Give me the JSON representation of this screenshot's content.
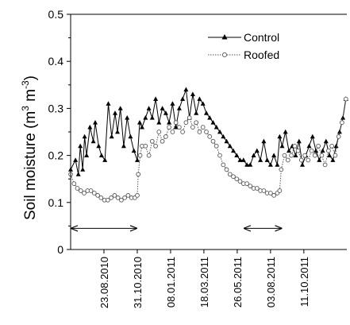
{
  "chart_data": {
    "type": "line",
    "ylabel": "Soil moisture (m³ m⁻³)",
    "ylabel_parts": {
      "base": "Soil moisture (m",
      "exp1": "3",
      "mid": " m",
      "exp2": "-3",
      "end": ")"
    },
    "ylim": [
      0,
      0.5
    ],
    "yticks": [
      "0",
      "0.1",
      "0.2",
      "0.3",
      "0.4",
      "0.5"
    ],
    "xlim": [
      "2010-06-15",
      "2012-01-08"
    ],
    "xtick_dates": [
      "2010-08-23",
      "2010-10-31",
      "2011-01-08",
      "2011-03-18",
      "2011-05-26",
      "2011-08-03",
      "2011-10-11"
    ],
    "xtick_labels": [
      "23.08.2010",
      "31.10.2010",
      "08.01.2011",
      "18.03.2011",
      "26.05.2011",
      "03.08.2011",
      "11.10.2011"
    ],
    "legend": {
      "position": "top-right",
      "entries": [
        "Control",
        "Roofed"
      ]
    },
    "series": [
      {
        "name": "Control",
        "marker": "triangle",
        "line": "solid",
        "color": "#000000",
        "x": [
          "2010-06-15",
          "2010-06-25",
          "2010-07-01",
          "2010-07-05",
          "2010-07-10",
          "2010-07-14",
          "2010-07-18",
          "2010-07-25",
          "2010-08-01",
          "2010-08-05",
          "2010-08-12",
          "2010-08-18",
          "2010-08-25",
          "2010-09-01",
          "2010-09-08",
          "2010-09-15",
          "2010-09-20",
          "2010-09-26",
          "2010-10-03",
          "2010-10-10",
          "2010-10-17",
          "2010-10-24",
          "2010-10-31",
          "2010-11-05",
          "2010-11-10",
          "2010-11-17",
          "2010-11-24",
          "2010-12-01",
          "2010-12-08",
          "2010-12-15",
          "2010-12-22",
          "2010-12-29",
          "2011-01-05",
          "2011-01-12",
          "2011-01-19",
          "2011-01-26",
          "2011-02-02",
          "2011-02-09",
          "2011-02-16",
          "2011-02-23",
          "2011-03-02",
          "2011-03-09",
          "2011-03-16",
          "2011-03-23",
          "2011-03-30",
          "2011-04-06",
          "2011-04-13",
          "2011-04-20",
          "2011-04-27",
          "2011-05-04",
          "2011-05-11",
          "2011-05-18",
          "2011-05-25",
          "2011-06-01",
          "2011-06-08",
          "2011-06-15",
          "2011-06-22",
          "2011-06-29",
          "2011-07-06",
          "2011-07-13",
          "2011-07-20",
          "2011-07-27",
          "2011-08-03",
          "2011-08-10",
          "2011-08-17",
          "2011-08-22",
          "2011-08-27",
          "2011-09-03",
          "2011-09-10",
          "2011-09-17",
          "2011-09-24",
          "2011-10-01",
          "2011-10-08",
          "2011-10-15",
          "2011-10-22",
          "2011-10-29",
          "2011-11-05",
          "2011-11-12",
          "2011-11-19",
          "2011-11-26",
          "2011-12-03",
          "2011-12-10",
          "2011-12-17",
          "2011-12-24",
          "2011-12-31",
          "2012-01-06"
        ],
        "y": [
          0.17,
          0.19,
          0.16,
          0.22,
          0.17,
          0.24,
          0.2,
          0.26,
          0.23,
          0.27,
          0.22,
          0.2,
          0.19,
          0.31,
          0.24,
          0.29,
          0.25,
          0.3,
          0.22,
          0.28,
          0.24,
          0.21,
          0.19,
          0.27,
          0.26,
          0.28,
          0.3,
          0.28,
          0.32,
          0.27,
          0.3,
          0.29,
          0.27,
          0.31,
          0.26,
          0.3,
          0.32,
          0.34,
          0.28,
          0.33,
          0.29,
          0.32,
          0.31,
          0.29,
          0.28,
          0.27,
          0.26,
          0.25,
          0.24,
          0.23,
          0.22,
          0.21,
          0.2,
          0.19,
          0.19,
          0.18,
          0.18,
          0.2,
          0.21,
          0.19,
          0.23,
          0.19,
          0.18,
          0.2,
          0.18,
          0.24,
          0.22,
          0.25,
          0.21,
          0.22,
          0.2,
          0.23,
          0.18,
          0.2,
          0.22,
          0.24,
          0.21,
          0.19,
          0.21,
          0.23,
          0.2,
          0.19,
          0.22,
          0.25,
          0.28,
          0.32
        ]
      },
      {
        "name": "Roofed",
        "marker": "circle",
        "line": "dotted",
        "color": "#555555",
        "x": [
          "2010-06-15",
          "2010-06-22",
          "2010-06-29",
          "2010-07-06",
          "2010-07-13",
          "2010-07-20",
          "2010-07-27",
          "2010-08-03",
          "2010-08-10",
          "2010-08-17",
          "2010-08-24",
          "2010-08-31",
          "2010-09-07",
          "2010-09-14",
          "2010-09-21",
          "2010-09-28",
          "2010-10-05",
          "2010-10-12",
          "2010-10-19",
          "2010-10-26",
          "2010-10-31",
          "2010-11-02",
          "2010-11-06",
          "2010-11-10",
          "2010-11-17",
          "2010-11-24",
          "2010-12-01",
          "2010-12-08",
          "2010-12-15",
          "2010-12-22",
          "2010-12-29",
          "2011-01-05",
          "2011-01-12",
          "2011-01-19",
          "2011-01-26",
          "2011-02-02",
          "2011-02-09",
          "2011-02-16",
          "2011-02-23",
          "2011-03-02",
          "2011-03-09",
          "2011-03-16",
          "2011-03-23",
          "2011-03-30",
          "2011-04-06",
          "2011-04-13",
          "2011-04-20",
          "2011-04-27",
          "2011-05-04",
          "2011-05-11",
          "2011-05-18",
          "2011-05-25",
          "2011-06-01",
          "2011-06-08",
          "2011-06-15",
          "2011-06-22",
          "2011-06-29",
          "2011-07-06",
          "2011-07-13",
          "2011-07-20",
          "2011-07-27",
          "2011-08-03",
          "2011-08-10",
          "2011-08-17",
          "2011-08-22",
          "2011-08-25",
          "2011-09-01",
          "2011-09-08",
          "2011-09-15",
          "2011-09-22",
          "2011-09-29",
          "2011-10-06",
          "2011-10-13",
          "2011-10-20",
          "2011-10-27",
          "2011-11-03",
          "2011-11-10",
          "2011-11-17",
          "2011-11-24",
          "2011-12-01",
          "2011-12-08",
          "2011-12-15",
          "2011-12-22",
          "2011-12-29",
          "2012-01-06"
        ],
        "y": [
          0.16,
          0.14,
          0.13,
          0.125,
          0.12,
          0.125,
          0.125,
          0.12,
          0.115,
          0.11,
          0.105,
          0.105,
          0.11,
          0.115,
          0.11,
          0.105,
          0.11,
          0.115,
          0.11,
          0.11,
          0.115,
          0.16,
          0.2,
          0.22,
          0.22,
          0.2,
          0.23,
          0.22,
          0.25,
          0.23,
          0.24,
          0.26,
          0.25,
          0.27,
          0.26,
          0.25,
          0.27,
          0.28,
          0.26,
          0.27,
          0.25,
          0.26,
          0.25,
          0.24,
          0.23,
          0.22,
          0.2,
          0.18,
          0.17,
          0.16,
          0.155,
          0.15,
          0.145,
          0.14,
          0.14,
          0.135,
          0.13,
          0.13,
          0.125,
          0.125,
          0.12,
          0.12,
          0.115,
          0.12,
          0.125,
          0.17,
          0.2,
          0.19,
          0.2,
          0.22,
          0.21,
          0.19,
          0.2,
          0.19,
          0.21,
          0.2,
          0.22,
          0.2,
          0.18,
          0.21,
          0.22,
          0.2,
          0.24,
          0.27,
          0.32
        ]
      }
    ],
    "annotations": [
      {
        "type": "double-arrow",
        "y": 0.045,
        "x0": "2010-06-15",
        "x1": "2010-10-31"
      },
      {
        "type": "double-arrow",
        "y": 0.045,
        "x0": "2011-06-08",
        "x1": "2011-08-27"
      }
    ]
  }
}
